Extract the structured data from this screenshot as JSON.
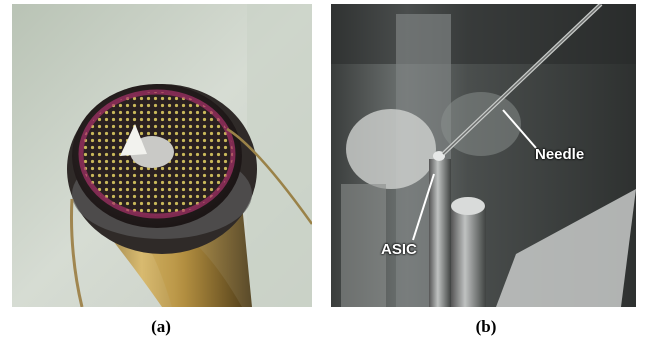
{
  "panels": [
    {
      "id": "a",
      "caption": "(a)"
    },
    {
      "id": "b",
      "caption": "(b)"
    }
  ],
  "annotations": {
    "needle": "Needle",
    "asic": "ASIC"
  }
}
